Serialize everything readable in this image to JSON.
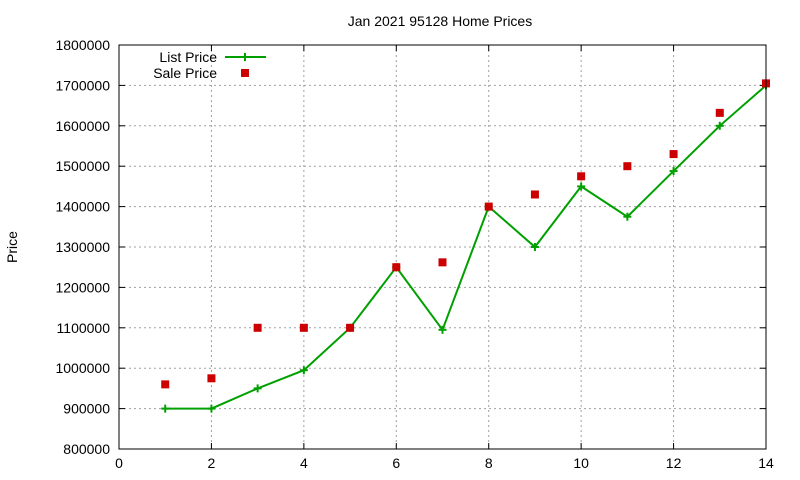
{
  "chart_data": {
    "type": "line",
    "title": "Jan 2021 95128 Home Prices",
    "xlabel": "",
    "ylabel": "Price",
    "xlim": [
      0,
      14
    ],
    "ylim": [
      800000,
      1800000
    ],
    "x_ticks": [
      "0",
      "2",
      "4",
      "6",
      "8",
      "10",
      "12",
      "14"
    ],
    "y_ticks": [
      "800000",
      "900000",
      "1000000",
      "1100000",
      "1200000",
      "1300000",
      "1400000",
      "1500000",
      "1600000",
      "1700000",
      "1800000"
    ],
    "grid": true,
    "legend_position": "top-left",
    "x": [
      1,
      2,
      3,
      4,
      5,
      6,
      7,
      8,
      9,
      10,
      11,
      12,
      13,
      14
    ],
    "series": [
      {
        "name": "List Price",
        "style": "line-plus-markers",
        "color": "#00a000",
        "values": [
          900000,
          900000,
          950000,
          995000,
          1100000,
          1250000,
          1095000,
          1400000,
          1300000,
          1450000,
          1375000,
          1488000,
          1600000,
          1700000
        ]
      },
      {
        "name": "Sale Price",
        "style": "square-markers",
        "color": "#cc0000",
        "values": [
          960000,
          975000,
          1100000,
          1100000,
          1100000,
          1250000,
          1262000,
          1400000,
          1430000,
          1475000,
          1500000,
          1530000,
          1632000,
          1705000
        ]
      }
    ]
  }
}
